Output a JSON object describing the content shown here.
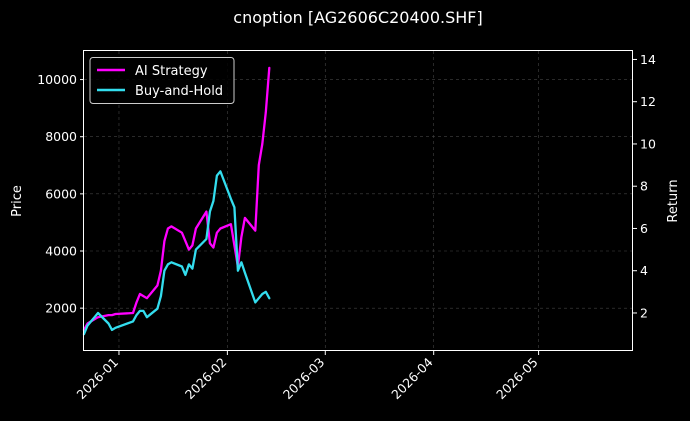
{
  "chart_data": {
    "type": "line",
    "title": "cnoption [AG2606C20400.SHF]",
    "ylabel": "Price",
    "y2label": "Return",
    "grid": true,
    "legend_placement": "top-left",
    "x_ticks": [
      "2026-01",
      "2026-02",
      "2026-03",
      "2026-04",
      "2026-05"
    ],
    "xlim": [
      "2025-12-22",
      "2026-05-28"
    ],
    "y_ticks": [
      "2000",
      "4000",
      "6000",
      "8000",
      "10000"
    ],
    "ylim": [
      500,
      11000
    ],
    "y2_ticks": [
      "2",
      "4",
      "6",
      "8",
      "10",
      "12",
      "14"
    ],
    "y2lim": [
      0.2,
      14.4
    ],
    "x": [
      "2025-12-22",
      "2025-12-23",
      "2025-12-24",
      "2025-12-25",
      "2025-12-26",
      "2025-12-29",
      "2025-12-30",
      "2025-12-31",
      "2026-01-05",
      "2026-01-06",
      "2026-01-07",
      "2026-01-08",
      "2026-01-09",
      "2026-01-12",
      "2026-01-13",
      "2026-01-14",
      "2026-01-15",
      "2026-01-16",
      "2026-01-19",
      "2026-01-20",
      "2026-01-21",
      "2026-01-22",
      "2026-01-23",
      "2026-01-26",
      "2026-01-27",
      "2026-01-28",
      "2026-01-29",
      "2026-01-30",
      "2026-02-02",
      "2026-02-03",
      "2026-02-04",
      "2026-02-05",
      "2026-02-06",
      "2026-02-09",
      "2026-02-10",
      "2026-02-11",
      "2026-02-12",
      "2026-02-13"
    ],
    "series": [
      {
        "name": "AI Strategy",
        "color": "#ff00ff",
        "axis": "right",
        "values": [
          1.2,
          1.5,
          1.6,
          1.7,
          1.8,
          1.9,
          1.9,
          1.95,
          2.0,
          2.5,
          2.9,
          2.8,
          2.7,
          3.3,
          4.0,
          5.4,
          6.0,
          6.1,
          5.8,
          5.4,
          5.0,
          5.2,
          6.0,
          6.8,
          5.3,
          5.1,
          5.8,
          6.0,
          6.2,
          5.2,
          4.2,
          5.6,
          6.5,
          5.9,
          9.0,
          10.0,
          11.5,
          13.6
        ]
      },
      {
        "name": "Buy-and-Hold",
        "color": "#33ddee",
        "axis": "right",
        "values": [
          1.0,
          1.4,
          1.6,
          1.8,
          2.0,
          1.5,
          1.2,
          1.3,
          1.6,
          1.9,
          2.1,
          2.1,
          1.8,
          2.2,
          2.8,
          4.0,
          4.3,
          4.4,
          4.2,
          3.8,
          4.3,
          4.1,
          5.0,
          5.5,
          6.8,
          7.3,
          8.5,
          8.7,
          7.4,
          7.0,
          4.0,
          4.4,
          3.9,
          2.5,
          2.7,
          2.9,
          3.0,
          2.7
        ]
      }
    ],
    "legend": [
      "AI Strategy",
      "Buy-and-Hold"
    ],
    "background": "#000000",
    "grid_color": "#444444"
  }
}
